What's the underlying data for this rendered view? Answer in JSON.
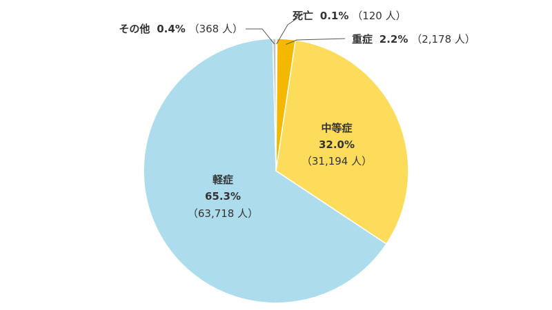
{
  "chart_data": {
    "type": "pie",
    "slices": [
      {
        "name": "死亡",
        "percent_label": "0.1%",
        "count_label": "（120 人）",
        "value": 120,
        "color": "#F0A500"
      },
      {
        "name": "重症",
        "percent_label": "2.2%",
        "count_label": "（2,178 人）",
        "value": 2178,
        "color": "#F5B800"
      },
      {
        "name": "中等症",
        "percent_label": "32.0%",
        "count_label": "（31,194 人）",
        "value": 31194,
        "color": "#FDDC5C"
      },
      {
        "name": "軽症",
        "percent_label": "65.3%",
        "count_label": "（63,718 人）",
        "value": 63718,
        "color": "#ADDDED"
      },
      {
        "name": "その他",
        "percent_label": "0.4%",
        "count_label": "（368 人）",
        "value": 368,
        "color": "#C4C4C4"
      }
    ]
  }
}
